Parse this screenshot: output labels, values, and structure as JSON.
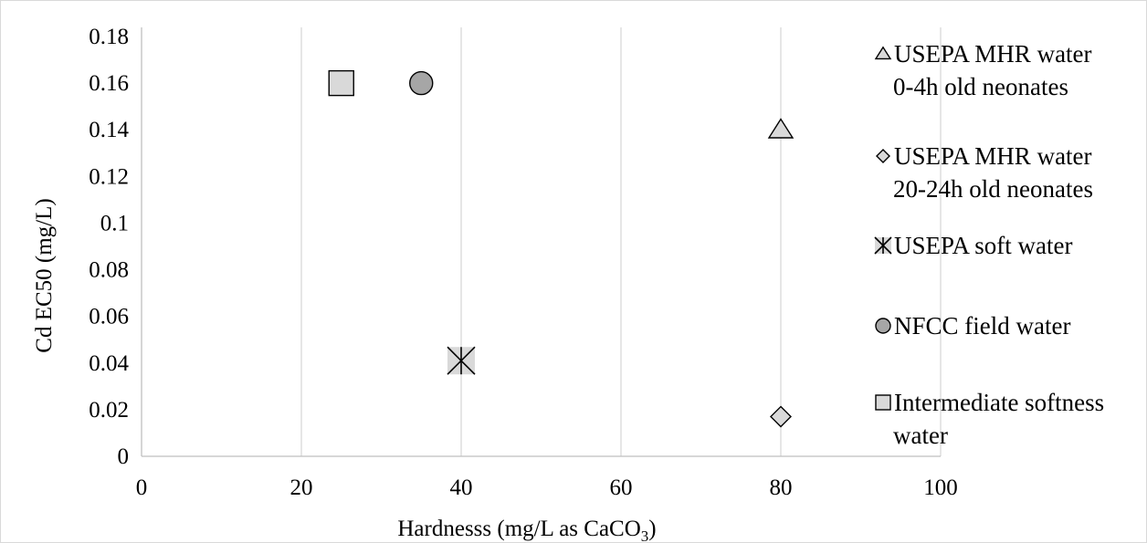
{
  "chart_data": {
    "type": "scatter",
    "xlabel": "Hardnesss (mg/L as CaCO",
    "xlabel_subscript": "3",
    "xlabel_suffix": ")",
    "ylabel": "Cd EC50 (mg/L)",
    "xlim": [
      0,
      100
    ],
    "ylim": [
      0,
      0.18
    ],
    "x_ticks": [
      "0",
      "20",
      "40",
      "60",
      "80",
      "100"
    ],
    "y_ticks": [
      "0",
      "0.02",
      "0.04",
      "0.06",
      "0.08",
      "0.1",
      "0.12",
      "0.14",
      "0.16",
      "0.18"
    ],
    "grid": "vertical",
    "legend_position": "right",
    "series": [
      {
        "name_lines": [
          "USEPA MHR water",
          "0-4h old neonates"
        ],
        "marker": "triangle",
        "fill": "#d9d9d9",
        "x": [
          80
        ],
        "y": [
          0.14
        ]
      },
      {
        "name_lines": [
          "USEPA MHR water",
          "20-24h old neonates"
        ],
        "marker": "diamond",
        "fill": "#d9d9d9",
        "x": [
          80
        ],
        "y": [
          0.017
        ]
      },
      {
        "name_lines": [
          "USEPA soft water"
        ],
        "marker": "asterisk",
        "fill": "#d9d9d9",
        "x": [
          40
        ],
        "y": [
          0.041
        ]
      },
      {
        "name_lines": [
          "NFCC field water"
        ],
        "marker": "circle",
        "fill": "#a6a6a6",
        "x": [
          35
        ],
        "y": [
          0.16
        ]
      },
      {
        "name_lines": [
          "Intermediate softness",
          "water"
        ],
        "marker": "square",
        "fill": "#d9d9d9",
        "x": [
          25
        ],
        "y": [
          0.16
        ]
      }
    ]
  }
}
